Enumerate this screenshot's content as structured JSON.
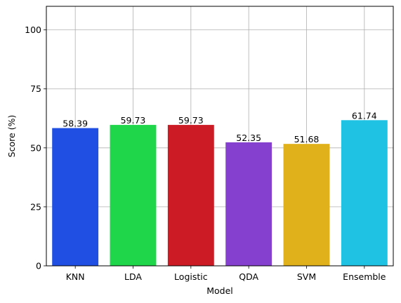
{
  "chart_data": {
    "type": "bar",
    "title": "",
    "xlabel": "Model",
    "ylabel": "Score (%)",
    "categories": [
      "KNN",
      "LDA",
      "Logistic",
      "QDA",
      "SVM",
      "Ensemble"
    ],
    "values": [
      58.39,
      59.73,
      59.73,
      52.35,
      51.68,
      61.74
    ],
    "data_labels": [
      "58.39",
      "59.73",
      "59.73",
      "52.35",
      "51.68",
      "61.74"
    ],
    "colors": [
      "#1f4fe3",
      "#1fd64a",
      "#cc1b24",
      "#8640cf",
      "#e0b11a",
      "#1fc2e2"
    ],
    "ylim": [
      0,
      110
    ],
    "yticks": [
      0,
      25,
      50,
      75,
      100
    ],
    "ytick_labels": [
      "0",
      "25",
      "50",
      "75",
      "100"
    ],
    "grid": true,
    "legend": "none"
  }
}
